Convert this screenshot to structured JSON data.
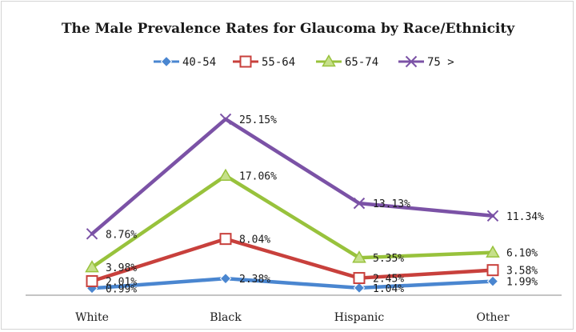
{
  "chart_data": {
    "type": "line",
    "title": "The Male Prevalence Rates for Glaucoma by Race/Ethnicity",
    "categories": [
      "White",
      "Black",
      "Hispanic",
      "Other"
    ],
    "ylim": [
      0,
      28
    ],
    "grid": false,
    "legend_position": "top",
    "series": [
      {
        "name": "40-54",
        "color": "#4a86d0",
        "marker": "diamond",
        "values": [
          0.99,
          2.38,
          1.04,
          1.99
        ],
        "labels": [
          "0.99%",
          "2.38%",
          "1.04%",
          "1.99%"
        ]
      },
      {
        "name": "55-64",
        "color": "#c8403c",
        "marker": "square",
        "values": [
          2.01,
          8.04,
          2.45,
          3.58
        ],
        "labels": [
          "2.01%",
          "8.04%",
          "2.45%",
          "3.58%"
        ]
      },
      {
        "name": "65-74",
        "color": "#98c23c",
        "marker": "triangle",
        "values": [
          3.98,
          17.06,
          5.35,
          6.1
        ],
        "labels": [
          "3.98%",
          "17.06%",
          "5.35%",
          "6.10%"
        ]
      },
      {
        "name": "75 >",
        "color": "#7b52a6",
        "marker": "x",
        "values": [
          8.76,
          25.15,
          13.13,
          11.34
        ],
        "labels": [
          "8.76%",
          "25.15%",
          "13.13%",
          "11.34%"
        ]
      }
    ]
  }
}
